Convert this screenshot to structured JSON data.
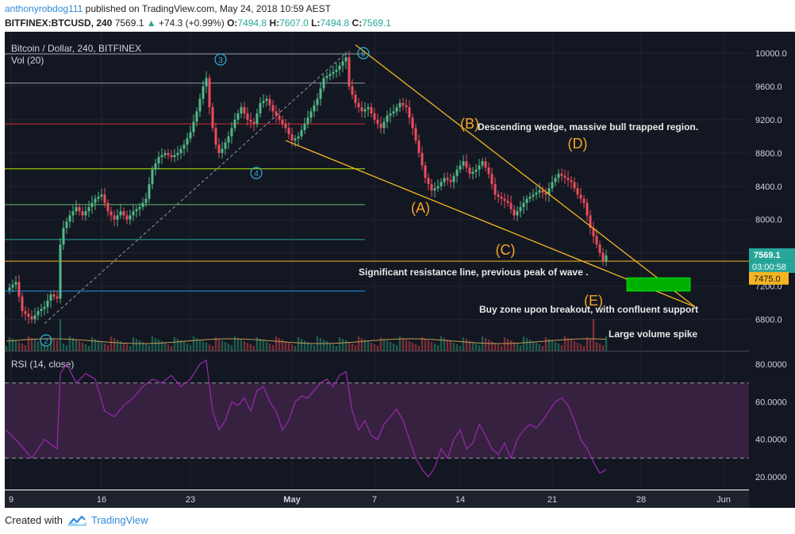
{
  "header": {
    "user": "anthonyrobdog111",
    "published": "published on TradingView.com, May 24, 2018 10:59 AEST",
    "symbol": "BITFINEX:BTCUSD, 240",
    "price": "7569.1",
    "change": "+74.3 (+0.99%)",
    "o_label": "O:",
    "o_val": "7494.8",
    "h_label": "H:",
    "h_val": "7607.0",
    "l_label": "L:",
    "l_val": "7494.8",
    "c_label": "C:",
    "c_val": "7569.1"
  },
  "footer": {
    "created_with": "Created with",
    "brand": "TradingView"
  },
  "colors": {
    "bg": "#131722",
    "up": "#53b987",
    "down": "#eb4d5c",
    "wedge": "#f5b522",
    "annotation": "#f5a623",
    "rsi": "#9c27b0",
    "rsi_band": "#3d2445",
    "zone": "#00b000",
    "price_label": "#26a69a",
    "level_label": "#f5b522"
  },
  "chart_data": [
    {
      "type": "candlestick",
      "title": "Bitcoin / Dollar, 240, BITFINEX",
      "vol_label": "Vol (20)",
      "x_ticks": [
        "9",
        "16",
        "23",
        "May",
        "7",
        "14",
        "21",
        "28",
        "Jun"
      ],
      "y_ticks": [
        6800,
        7200,
        7600,
        8000,
        8400,
        8800,
        9200,
        9600,
        10000
      ],
      "ylim": [
        6500,
        10200
      ],
      "last_price": "7569.1",
      "countdown": "03:00:58",
      "buy_level": "7475.0",
      "horizontal_levels": [
        {
          "value": 9990,
          "color": "#9598a1"
        },
        {
          "value": 9640,
          "color": "#9598a1"
        },
        {
          "value": 9150,
          "color": "#d32f2f"
        },
        {
          "value": 8610,
          "color": "#aeea00"
        },
        {
          "value": 8180,
          "color": "#66bb6a"
        },
        {
          "value": 7760,
          "color": "#26a69a"
        },
        {
          "value": 7500,
          "color": "#f5b522"
        },
        {
          "value": 7140,
          "color": "#2196f3"
        }
      ],
      "wave_labels": [
        "2",
        "3",
        "4",
        "5"
      ],
      "annotations": {
        "A": "(A)",
        "B": "(B)",
        "C": "(C)",
        "D": "(D)",
        "E": "(E)",
        "wedge": "Descending wedge, massive bull trapped region.",
        "resistance": "Significant resistance line, previous peak of wave .",
        "buyzone": "Buy zone upon breakout, with confluent support",
        "volume": "Large volume spike"
      },
      "close_path": [
        [
          0,
          7150
        ],
        [
          3,
          7250
        ],
        [
          5,
          6900
        ],
        [
          8,
          6800
        ],
        [
          10,
          6900
        ],
        [
          12,
          6950
        ],
        [
          14,
          7100
        ],
        [
          16,
          7050
        ],
        [
          17,
          7700
        ],
        [
          18,
          7900
        ],
        [
          20,
          8050
        ],
        [
          22,
          8150
        ],
        [
          24,
          8050
        ],
        [
          26,
          8150
        ],
        [
          28,
          8250
        ],
        [
          30,
          8300
        ],
        [
          32,
          8100
        ],
        [
          34,
          8000
        ],
        [
          36,
          8100
        ],
        [
          38,
          8000
        ],
        [
          40,
          8100
        ],
        [
          42,
          8150
        ],
        [
          44,
          8250
        ],
        [
          46,
          8600
        ],
        [
          48,
          8750
        ],
        [
          50,
          8800
        ],
        [
          52,
          8750
        ],
        [
          54,
          8800
        ],
        [
          56,
          8900
        ],
        [
          58,
          9050
        ],
        [
          60,
          9300
        ],
        [
          62,
          9600
        ],
        [
          63,
          9700
        ],
        [
          64,
          9350
        ],
        [
          65,
          9100
        ],
        [
          66,
          8900
        ],
        [
          67,
          8800
        ],
        [
          68,
          8850
        ],
        [
          70,
          9000
        ],
        [
          72,
          9200
        ],
        [
          74,
          9350
        ],
        [
          76,
          9200
        ],
        [
          78,
          9150
        ],
        [
          80,
          9400
        ],
        [
          82,
          9450
        ],
        [
          84,
          9300
        ],
        [
          86,
          9200
        ],
        [
          88,
          9100
        ],
        [
          90,
          8950
        ],
        [
          92,
          9000
        ],
        [
          94,
          9150
        ],
        [
          96,
          9300
        ],
        [
          98,
          9450
        ],
        [
          100,
          9700
        ],
        [
          102,
          9750
        ],
        [
          104,
          9800
        ],
        [
          106,
          9900
        ],
        [
          107,
          9950
        ],
        [
          108,
          9600
        ],
        [
          110,
          9400
        ],
        [
          112,
          9300
        ],
        [
          114,
          9350
        ],
        [
          116,
          9200
        ],
        [
          118,
          9100
        ],
        [
          120,
          9250
        ],
        [
          122,
          9300
        ],
        [
          124,
          9400
        ],
        [
          126,
          9350
        ],
        [
          128,
          9100
        ],
        [
          130,
          8800
        ],
        [
          132,
          8500
        ],
        [
          134,
          8350
        ],
        [
          136,
          8400
        ],
        [
          138,
          8500
        ],
        [
          140,
          8450
        ],
        [
          142,
          8600
        ],
        [
          144,
          8700
        ],
        [
          146,
          8550
        ],
        [
          148,
          8600
        ],
        [
          150,
          8700
        ],
        [
          152,
          8550
        ],
        [
          154,
          8300
        ],
        [
          156,
          8250
        ],
        [
          158,
          8200
        ],
        [
          160,
          8050
        ],
        [
          162,
          8150
        ],
        [
          164,
          8250
        ],
        [
          166,
          8300
        ],
        [
          168,
          8350
        ],
        [
          170,
          8300
        ],
        [
          172,
          8450
        ],
        [
          174,
          8550
        ],
        [
          176,
          8500
        ],
        [
          178,
          8450
        ],
        [
          180,
          8300
        ],
        [
          182,
          8200
        ],
        [
          184,
          7900
        ],
        [
          186,
          7700
        ],
        [
          188,
          7500
        ],
        [
          189,
          7569
        ]
      ],
      "volume_note": "Large volume spike"
    },
    {
      "type": "line",
      "title": "RSI (14, close)",
      "y_ticks": [
        20,
        40,
        60,
        80
      ],
      "ylim": [
        15,
        85
      ],
      "band": [
        30,
        70
      ],
      "values": [
        [
          0,
          45
        ],
        [
          4,
          38
        ],
        [
          8,
          30
        ],
        [
          12,
          40
        ],
        [
          16,
          35
        ],
        [
          17,
          75
        ],
        [
          19,
          80
        ],
        [
          22,
          70
        ],
        [
          25,
          75
        ],
        [
          28,
          72
        ],
        [
          31,
          55
        ],
        [
          34,
          52
        ],
        [
          37,
          58
        ],
        [
          40,
          62
        ],
        [
          43,
          68
        ],
        [
          46,
          72
        ],
        [
          49,
          70
        ],
        [
          52,
          74
        ],
        [
          55,
          68
        ],
        [
          58,
          72
        ],
        [
          61,
          80
        ],
        [
          63,
          82
        ],
        [
          65,
          55
        ],
        [
          67,
          45
        ],
        [
          69,
          50
        ],
        [
          71,
          60
        ],
        [
          73,
          58
        ],
        [
          75,
          62
        ],
        [
          77,
          55
        ],
        [
          79,
          66
        ],
        [
          81,
          68
        ],
        [
          83,
          60
        ],
        [
          85,
          55
        ],
        [
          87,
          45
        ],
        [
          89,
          50
        ],
        [
          91,
          60
        ],
        [
          93,
          63
        ],
        [
          95,
          62
        ],
        [
          97,
          66
        ],
        [
          99,
          70
        ],
        [
          101,
          72
        ],
        [
          103,
          68
        ],
        [
          105,
          74
        ],
        [
          107,
          76
        ],
        [
          109,
          55
        ],
        [
          111,
          45
        ],
        [
          113,
          50
        ],
        [
          115,
          42
        ],
        [
          117,
          40
        ],
        [
          119,
          48
        ],
        [
          121,
          52
        ],
        [
          123,
          56
        ],
        [
          125,
          50
        ],
        [
          127,
          40
        ],
        [
          129,
          30
        ],
        [
          131,
          24
        ],
        [
          133,
          20
        ],
        [
          135,
          25
        ],
        [
          137,
          35
        ],
        [
          139,
          30
        ],
        [
          141,
          40
        ],
        [
          143,
          45
        ],
        [
          145,
          35
        ],
        [
          147,
          38
        ],
        [
          149,
          48
        ],
        [
          151,
          42
        ],
        [
          153,
          35
        ],
        [
          155,
          32
        ],
        [
          157,
          38
        ],
        [
          159,
          30
        ],
        [
          161,
          40
        ],
        [
          163,
          45
        ],
        [
          165,
          48
        ],
        [
          167,
          46
        ],
        [
          169,
          50
        ],
        [
          171,
          55
        ],
        [
          173,
          60
        ],
        [
          175,
          62
        ],
        [
          177,
          58
        ],
        [
          179,
          50
        ],
        [
          181,
          40
        ],
        [
          183,
          35
        ],
        [
          185,
          28
        ],
        [
          187,
          22
        ],
        [
          189,
          24
        ]
      ]
    }
  ]
}
